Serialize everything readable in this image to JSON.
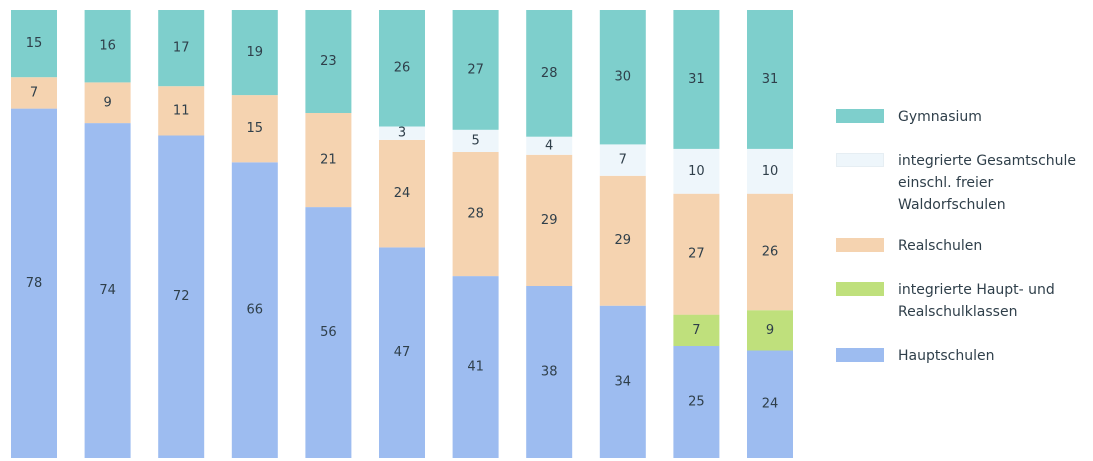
{
  "chart_data": {
    "type": "bar",
    "stacked": true,
    "ylim": [
      0,
      100
    ],
    "series": [
      {
        "key": "haupt",
        "name": "Hauptschulen",
        "color": "#9dbcf0",
        "values": [
          78,
          74,
          72,
          66,
          56,
          47,
          41,
          38,
          34,
          25,
          24
        ]
      },
      {
        "key": "integ_haupt_real",
        "name": "integrierte Haupt- und Realschulklassen",
        "color": "#bfe07c",
        "values": [
          null,
          null,
          null,
          null,
          null,
          null,
          null,
          null,
          null,
          7,
          9
        ]
      },
      {
        "key": "real",
        "name": "Realschulen",
        "color": "#f5d3b0",
        "values": [
          7,
          9,
          11,
          15,
          21,
          24,
          28,
          29,
          29,
          27,
          26
        ]
      },
      {
        "key": "gesamt",
        "name": "integrierte Gesamtschule einschl. freier Waldorfschulen",
        "color": "#eef6fb",
        "values": [
          null,
          null,
          null,
          null,
          null,
          3,
          5,
          4,
          7,
          10,
          10
        ]
      },
      {
        "key": "gym",
        "name": "Gymnasium",
        "color": "#7ecfcc",
        "values": [
          15,
          16,
          17,
          19,
          23,
          26,
          27,
          28,
          30,
          31,
          31
        ]
      }
    ],
    "legend": {
      "placement": "right",
      "items": [
        {
          "lines": [
            "Gymnasium"
          ],
          "color": "#7ecfcc"
        },
        {
          "lines": [
            "integrierte Gesamtschule",
            "einschl. freier",
            "Waldorfschulen"
          ],
          "color": "#eef6fb"
        },
        {
          "lines": [
            "Realschulen"
          ],
          "color": "#f5d3b0"
        },
        {
          "lines": [
            "integrierte Haupt- und",
            "Realschulklassen"
          ],
          "color": "#bfe07c"
        },
        {
          "lines": [
            "Hauptschulen"
          ],
          "color": "#9dbcf0"
        }
      ]
    }
  }
}
